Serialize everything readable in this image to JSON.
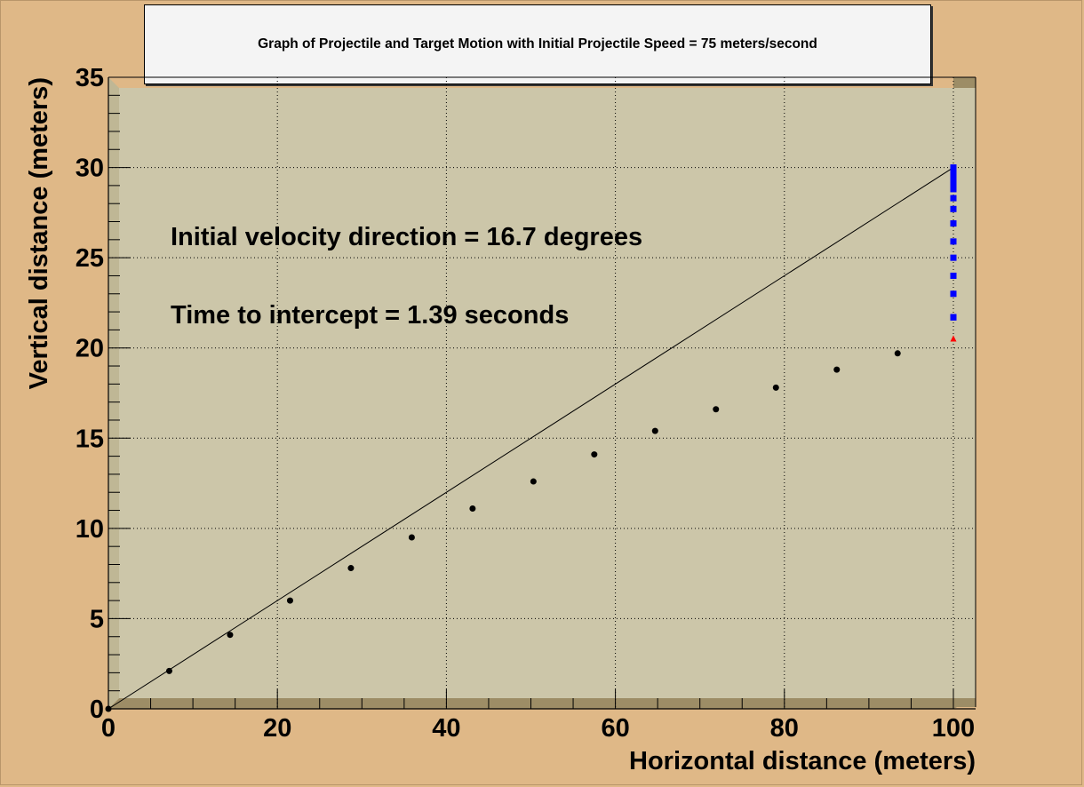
{
  "chart_data": {
    "type": "scatter",
    "title": "Graph of Projectile and Target Motion with Initial Projectile Speed = 75 meters/second",
    "xlabel": "Horizontal distance (meters)",
    "ylabel": "Vertical distance (meters)",
    "xlim": [
      0,
      100
    ],
    "ylim": [
      0,
      35
    ],
    "x_ticks": [
      "0",
      "20",
      "40",
      "60",
      "80",
      "100"
    ],
    "y_ticks": [
      "0",
      "5",
      "10",
      "15",
      "20",
      "25",
      "30",
      "35"
    ],
    "grid": true,
    "annotations": [
      "Initial velocity direction = 16.7 degrees",
      "Time to intercept = 1.39 seconds"
    ],
    "series": [
      {
        "marker": "circle",
        "color": "#000000",
        "x": [
          0,
          7.2,
          14.4,
          21.5,
          28.7,
          35.9,
          43.1,
          50.3,
          57.5,
          64.7,
          71.9,
          79.0,
          86.2,
          93.4
        ],
        "y": [
          0,
          2.1,
          4.1,
          6.0,
          7.8,
          9.5,
          11.1,
          12.6,
          14.1,
          15.4,
          16.6,
          17.8,
          18.8,
          19.7
        ]
      },
      {
        "marker": "square",
        "color": "#0000ff",
        "x": [
          100,
          100,
          100,
          100,
          100,
          100,
          100,
          100,
          100,
          100,
          100,
          100,
          100,
          100,
          100,
          100,
          100
        ],
        "y": [
          30.0,
          29.9,
          29.8,
          29.6,
          29.4,
          29.1,
          28.8,
          28.3,
          27.7,
          26.9,
          25.9,
          25.0,
          24.0,
          23.0,
          21.7,
          21.7,
          21.7
        ]
      },
      {
        "marker": "triangle",
        "color": "#ff0000",
        "x": [
          100
        ],
        "y": [
          20.5
        ]
      },
      {
        "type": "line",
        "color": "#000000",
        "x": [
          0,
          100
        ],
        "y": [
          0,
          30
        ]
      }
    ]
  }
}
